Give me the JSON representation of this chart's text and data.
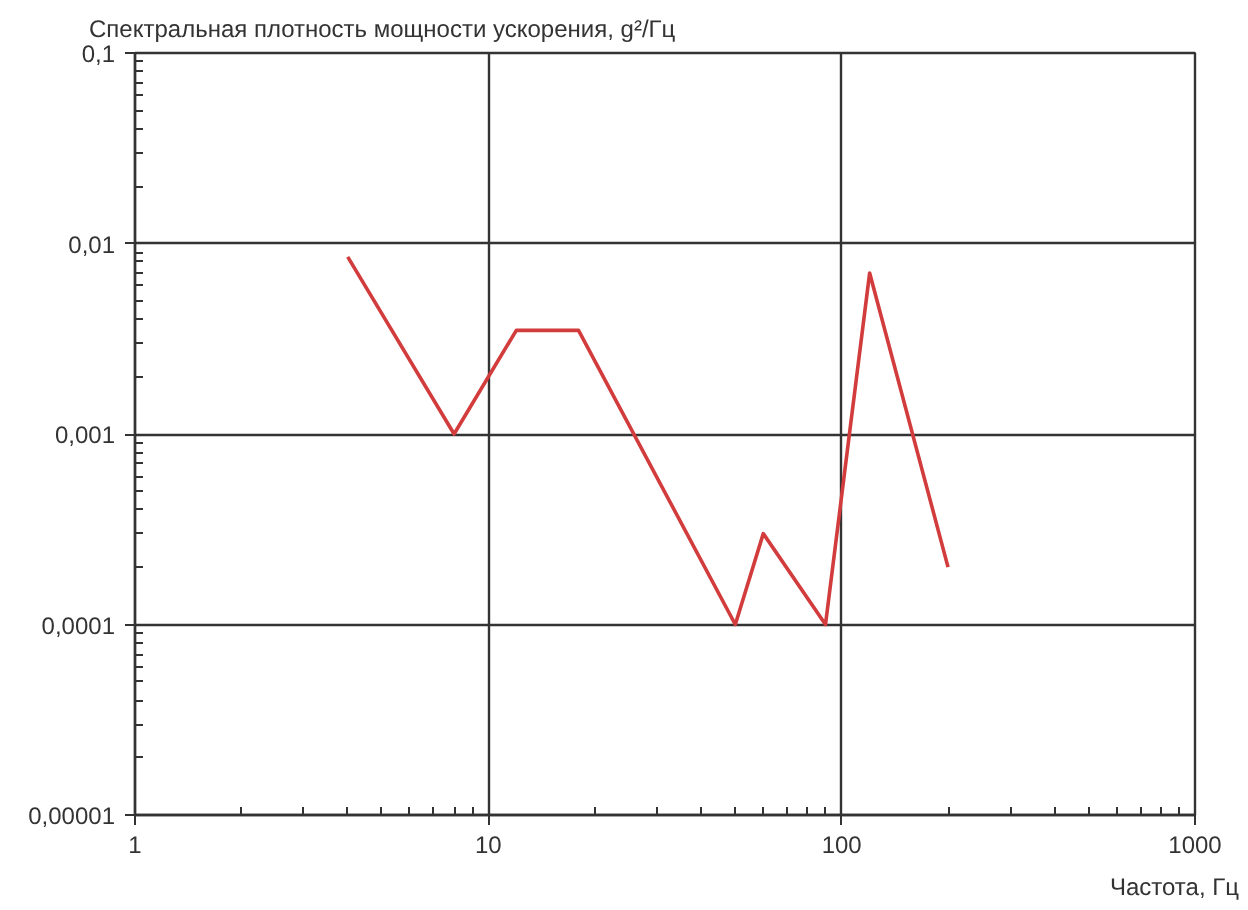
{
  "chart_data": {
    "type": "line",
    "ylabel": "Спектральная плотность мощности ускорения, g²/Гц",
    "xlabel": "Частота, Гц",
    "x": [
      4,
      8,
      12,
      18,
      50,
      60,
      90,
      120,
      200
    ],
    "series": [
      {
        "color": "#d23c3c",
        "values": [
          0.0085,
          0.001,
          0.0035,
          0.0035,
          0.0001,
          0.0003,
          0.0001,
          0.007,
          0.0002
        ]
      }
    ],
    "xlim": [
      1,
      1000
    ],
    "ylim": [
      1e-05,
      0.1
    ],
    "xticks": [
      1,
      10,
      100,
      1000
    ],
    "yticks": [
      {
        "value": 1e-05,
        "label": "0,00001"
      },
      {
        "value": 0.0001,
        "label": "0,0001"
      },
      {
        "value": 0.001,
        "label": "0,001"
      },
      {
        "value": 0.01,
        "label": "0,01"
      },
      {
        "value": 0.1,
        "label": "0,1"
      }
    ],
    "log": "xy",
    "grid": true
  }
}
